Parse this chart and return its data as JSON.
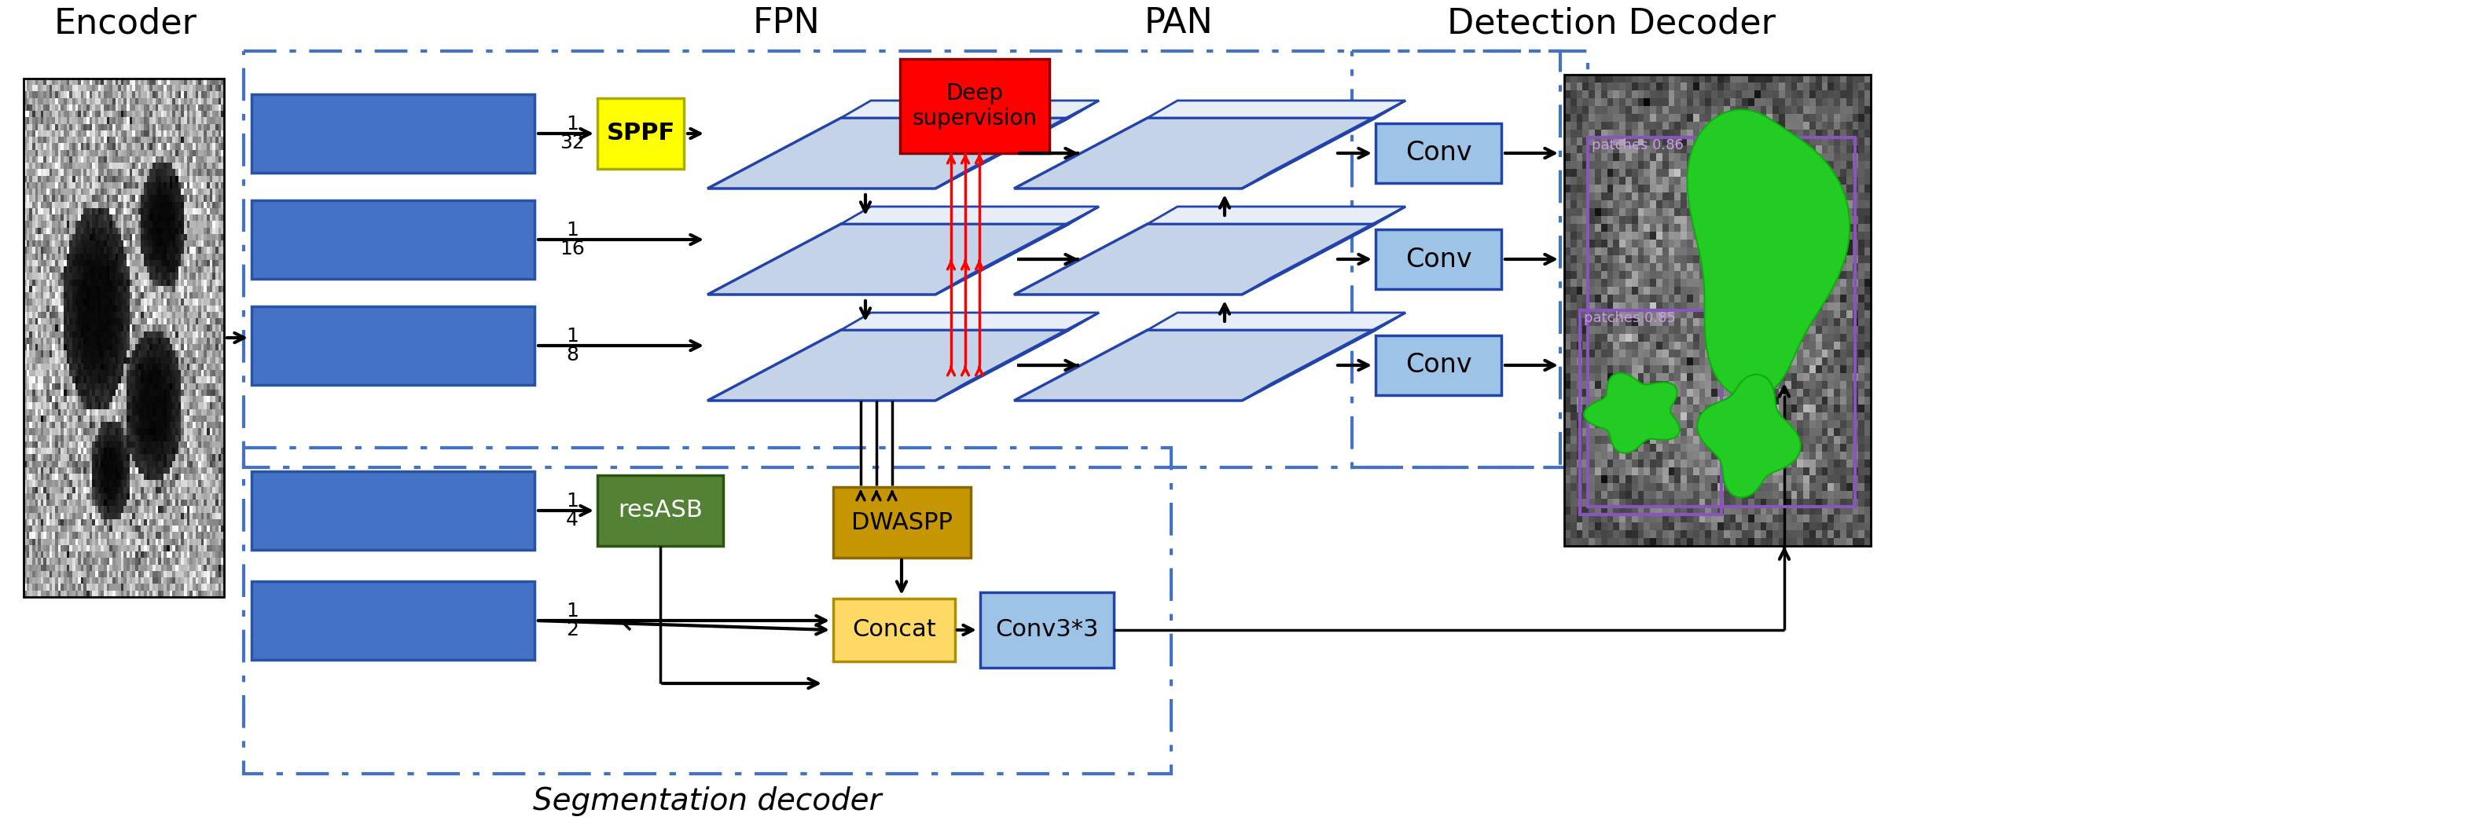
{
  "bg_color": "#ffffff",
  "encoder_label": "Encoder",
  "fpn_label": "FPN",
  "pan_label": "PAN",
  "detection_decoder_label": "Detection Decoder",
  "seg_decoder_label": "Segmentation decoder",
  "bar_color": "#4472c4",
  "bar_edge": "#2a52a4",
  "feature_face": "#c5d3e8",
  "feature_edge": "#2244aa",
  "feature_top": "#e8eef8",
  "feature_side": "#a0b8d8",
  "sppf_color": "#ffff00",
  "sppf_edge": "#aaaa00",
  "resasb_color": "#548235",
  "resasb_edge": "#2a5510",
  "dwaspp_color": "#c69600",
  "dwaspp_edge": "#8a6800",
  "concat_color": "#ffd966",
  "concat_edge": "#aa9000",
  "conv3x3_color": "#9dc3e6",
  "conv3x3_edge": "#2244aa",
  "deep_sup_color": "#ff0000",
  "deep_sup_edge": "#880000",
  "conv_color": "#9dc3e6",
  "conv_edge": "#2244aa",
  "dash_color": "#4472c4",
  "red_color": "#ff0000",
  "black": "#000000"
}
